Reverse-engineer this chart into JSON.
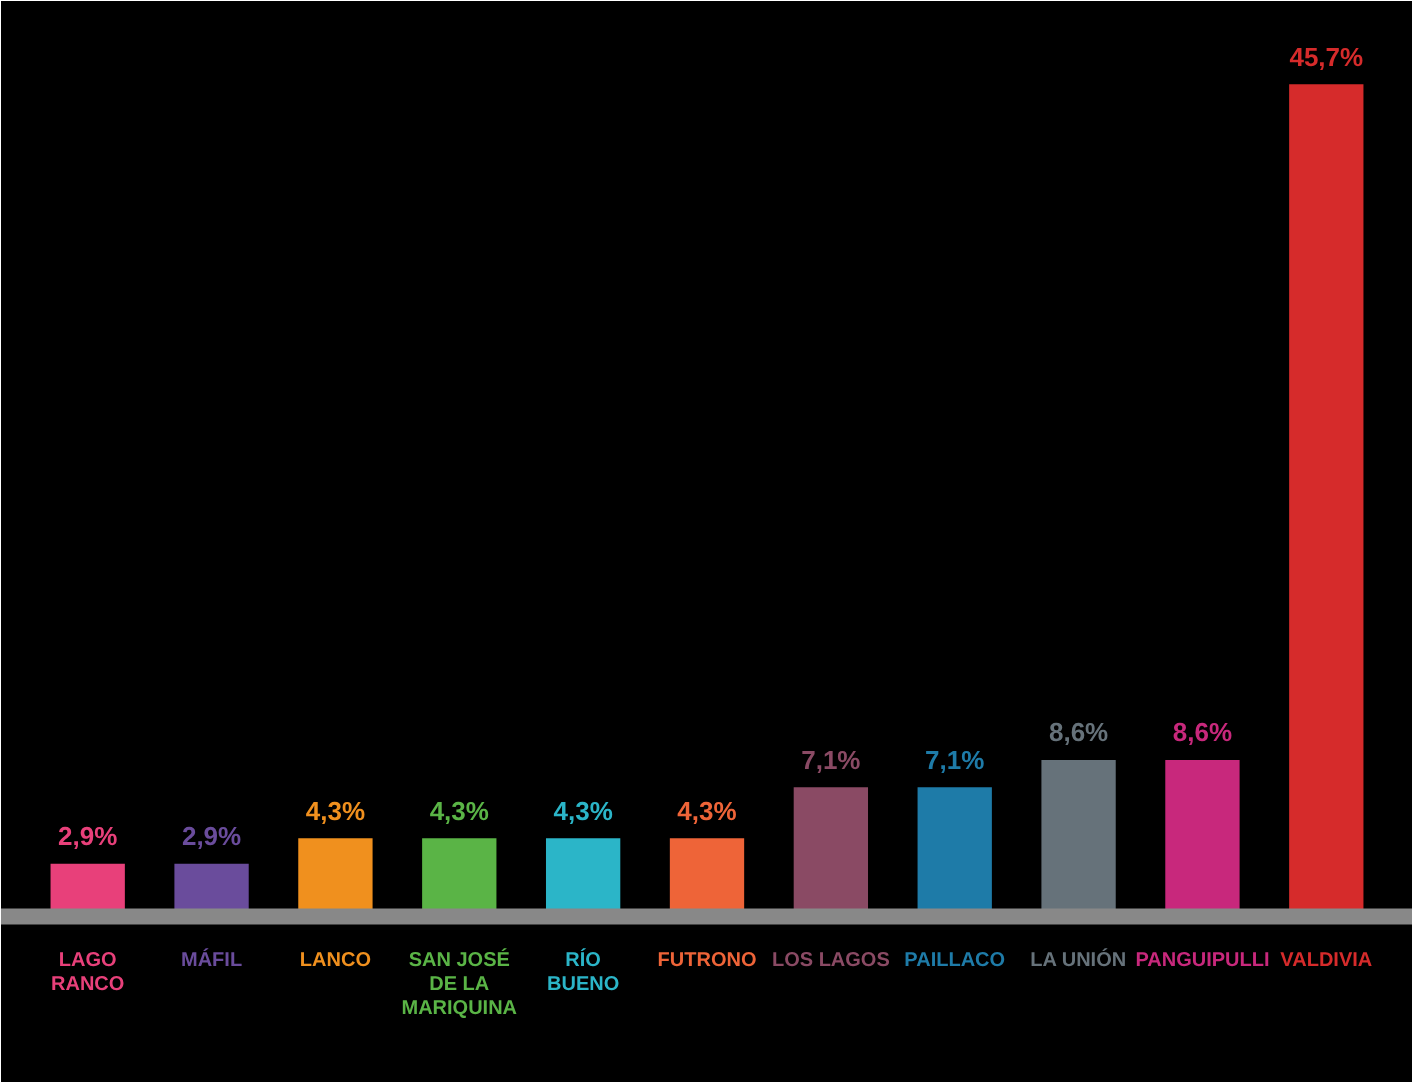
{
  "chart_data": {
    "type": "bar",
    "categories": [
      "LAGO\nRANCO",
      "MÁFIL",
      "LANCO",
      "SAN JOSÉ\nDE LA\nMARIQUINA",
      "RÍO\nBUENO",
      "FUTRONO",
      "LOS LAGOS",
      "PAILLACO",
      "LA UNIÓN",
      "PANGUIPULLI",
      "VALDIVIA"
    ],
    "values": [
      2.9,
      2.9,
      4.3,
      4.3,
      4.3,
      4.3,
      7.1,
      7.1,
      8.6,
      8.6,
      45.7
    ],
    "value_labels": [
      "2,9%",
      "2,9%",
      "4,3%",
      "4,3%",
      "4,3%",
      "4,3%",
      "7,1%",
      "7,1%",
      "8,6%",
      "8,6%",
      "45,7%"
    ],
    "colors": [
      "#e8407a",
      "#6a4c9c",
      "#f0901e",
      "#5ab446",
      "#2bb5c8",
      "#ee6438",
      "#8a4a64",
      "#1e7ba8",
      "#66727a",
      "#c8287c",
      "#d62b2b"
    ],
    "grid": false
  }
}
